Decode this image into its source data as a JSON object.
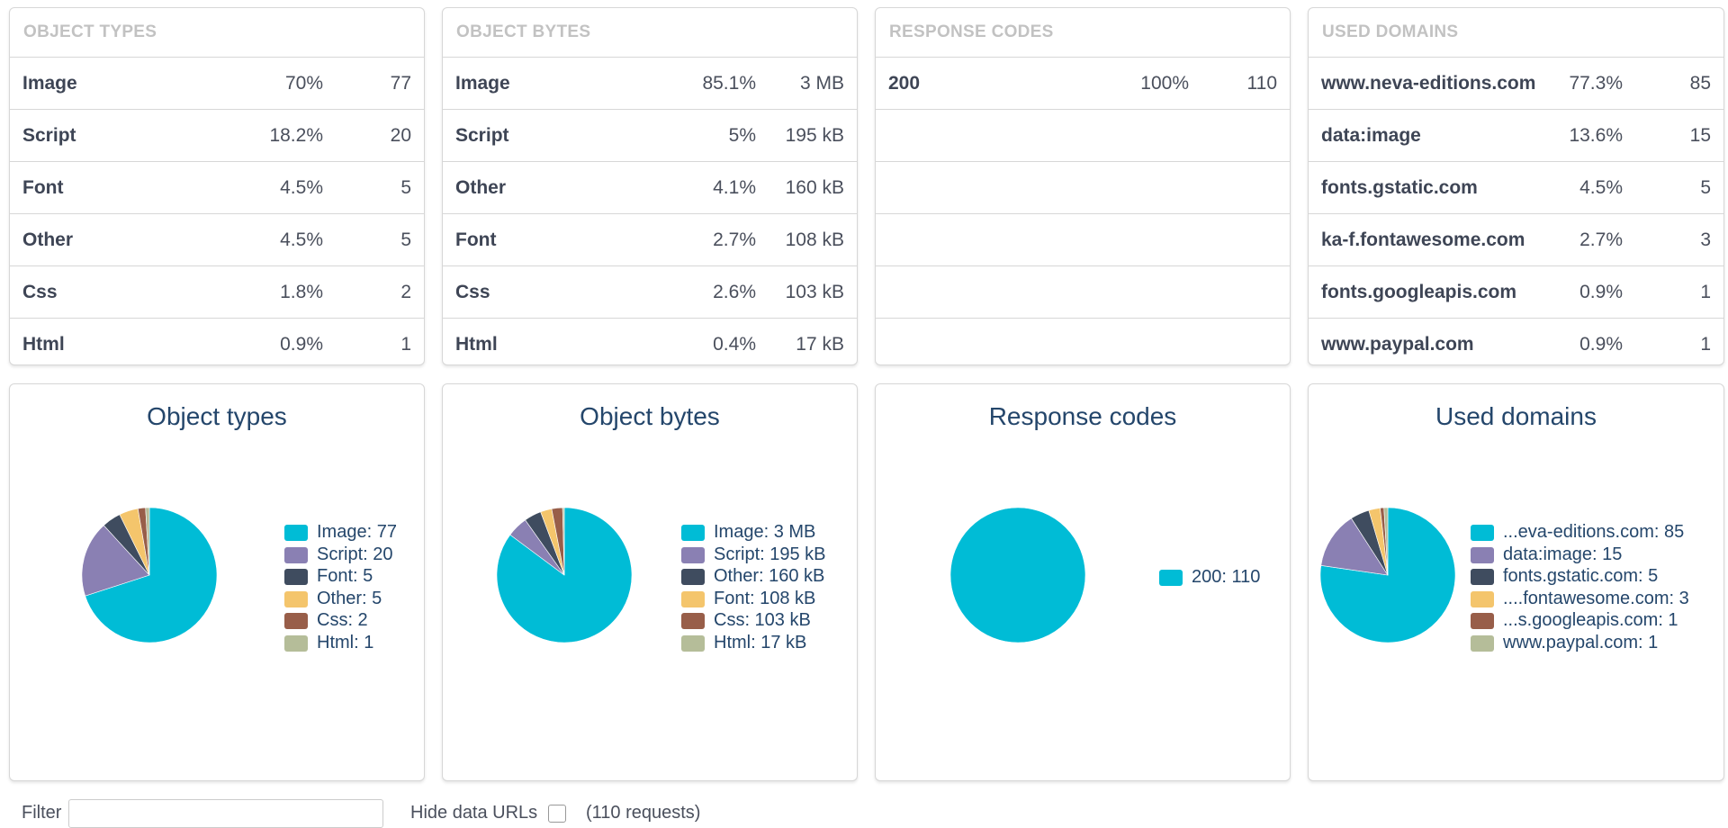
{
  "colors": {
    "cyan": "#00bcd6",
    "purple": "#8a80b3",
    "slate": "#3f4c5f",
    "yellow": "#f4c56c",
    "brown": "#985e49",
    "sage": "#b5bd99"
  },
  "tables": [
    {
      "header": "OBJECT TYPES",
      "rows": [
        {
          "name": "Image",
          "pct": "70%",
          "val": "77"
        },
        {
          "name": "Script",
          "pct": "18.2%",
          "val": "20"
        },
        {
          "name": "Font",
          "pct": "4.5%",
          "val": "5"
        },
        {
          "name": "Other",
          "pct": "4.5%",
          "val": "5"
        },
        {
          "name": "Css",
          "pct": "1.8%",
          "val": "2"
        },
        {
          "name": "Html",
          "pct": "0.9%",
          "val": "1"
        }
      ]
    },
    {
      "header": "OBJECT BYTES",
      "rows": [
        {
          "name": "Image",
          "pct": "85.1%",
          "val": "3 MB"
        },
        {
          "name": "Script",
          "pct": "5%",
          "val": "195 kB"
        },
        {
          "name": "Other",
          "pct": "4.1%",
          "val": "160 kB"
        },
        {
          "name": "Font",
          "pct": "2.7%",
          "val": "108 kB"
        },
        {
          "name": "Css",
          "pct": "2.6%",
          "val": "103 kB"
        },
        {
          "name": "Html",
          "pct": "0.4%",
          "val": "17 kB"
        }
      ]
    },
    {
      "header": "RESPONSE CODES",
      "rows": [
        {
          "name": "200",
          "pct": "100%",
          "val": "110"
        },
        {
          "name": "",
          "pct": "",
          "val": ""
        },
        {
          "name": "",
          "pct": "",
          "val": ""
        },
        {
          "name": "",
          "pct": "",
          "val": ""
        },
        {
          "name": "",
          "pct": "",
          "val": ""
        },
        {
          "name": "",
          "pct": "",
          "val": ""
        }
      ]
    },
    {
      "header": "USED DOMAINS",
      "rows": [
        {
          "name": "www.neva-editions.com",
          "pct": "77.3%",
          "val": "85"
        },
        {
          "name": "data:image",
          "pct": "13.6%",
          "val": "15"
        },
        {
          "name": "fonts.gstatic.com",
          "pct": "4.5%",
          "val": "5"
        },
        {
          "name": "ka-f.fontawesome.com",
          "pct": "2.7%",
          "val": "3"
        },
        {
          "name": "fonts.googleapis.com",
          "pct": "0.9%",
          "val": "1"
        },
        {
          "name": "www.paypal.com",
          "pct": "0.9%",
          "val": "1"
        }
      ]
    }
  ],
  "chart_data": [
    {
      "type": "pie",
      "title": "Object types",
      "slices": [
        {
          "label": "Image: 77",
          "value": 77,
          "color": "#00bcd6"
        },
        {
          "label": "Script: 20",
          "value": 20,
          "color": "#8a80b3"
        },
        {
          "label": "Font: 5",
          "value": 5,
          "color": "#3f4c5f"
        },
        {
          "label": "Other: 5",
          "value": 5,
          "color": "#f4c56c"
        },
        {
          "label": "Css: 2",
          "value": 2,
          "color": "#985e49"
        },
        {
          "label": "Html: 1",
          "value": 1,
          "color": "#b5bd99"
        }
      ]
    },
    {
      "type": "pie",
      "title": "Object bytes",
      "slices": [
        {
          "label": "Image: 3 MB",
          "value": 85.1,
          "color": "#00bcd6"
        },
        {
          "label": "Script: 195 kB",
          "value": 5,
          "color": "#8a80b3"
        },
        {
          "label": "Other: 160 kB",
          "value": 4.1,
          "color": "#3f4c5f"
        },
        {
          "label": "Font: 108 kB",
          "value": 2.7,
          "color": "#f4c56c"
        },
        {
          "label": "Css: 103 kB",
          "value": 2.6,
          "color": "#985e49"
        },
        {
          "label": "Html: 17 kB",
          "value": 0.4,
          "color": "#b5bd99"
        }
      ]
    },
    {
      "type": "pie",
      "title": "Response codes",
      "slices": [
        {
          "label": "200: 110",
          "value": 110,
          "color": "#00bcd6"
        }
      ]
    },
    {
      "type": "pie",
      "title": "Used domains",
      "slices": [
        {
          "label": "...eva-editions.com: 85",
          "value": 85,
          "color": "#00bcd6"
        },
        {
          "label": "data:image: 15",
          "value": 15,
          "color": "#8a80b3"
        },
        {
          "label": "fonts.gstatic.com: 5",
          "value": 5,
          "color": "#3f4c5f"
        },
        {
          "label": "....fontawesome.com: 3",
          "value": 3,
          "color": "#f4c56c"
        },
        {
          "label": "...s.googleapis.com: 1",
          "value": 1,
          "color": "#985e49"
        },
        {
          "label": "www.paypal.com: 1",
          "value": 1,
          "color": "#b5bd99"
        }
      ]
    }
  ],
  "filter": {
    "label": "Filter",
    "value": "",
    "hide_data_urls_label": "Hide data URLs",
    "request_count": "(110 requests)"
  }
}
